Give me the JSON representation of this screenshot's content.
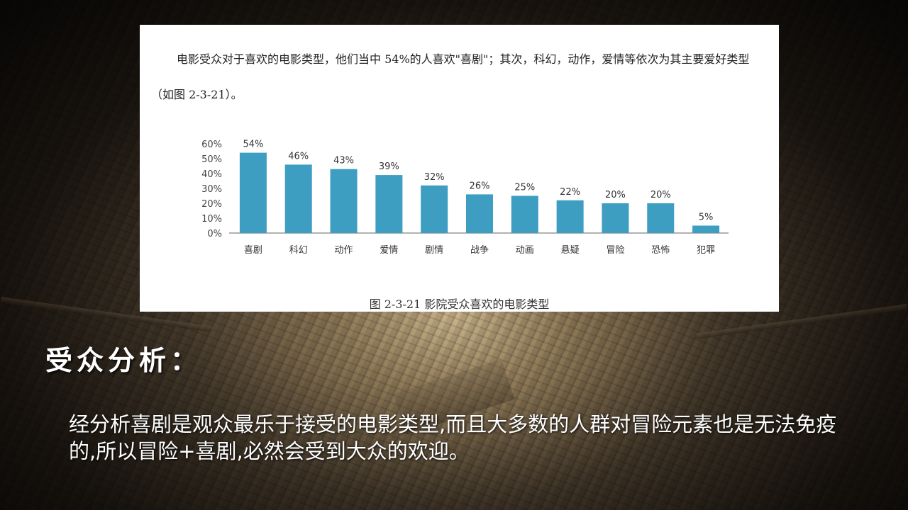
{
  "intro_text": "电影受众对于喜欢的电影类型，他们当中 54%的人喜欢\"喜剧\"；其次，科幻，动作，爱情等依次为其主要爱好类型（如图 2-3-21）。",
  "caption": "图 2-3-21 影院受众喜欢的电影类型",
  "section_title": "受众分析：",
  "body_text": "经分析喜剧是观众最乐于接受的电影类型,而且大多数的人群对冒险元素也是无法免疫的,所以冒险+喜剧,必然会受到大众的欢迎。",
  "colors": {
    "bar": "#3d9ec2",
    "axis": "#999999"
  },
  "chart_data": {
    "type": "bar",
    "categories": [
      "喜剧",
      "科幻",
      "动作",
      "爱情",
      "剧情",
      "战争",
      "动画",
      "悬疑",
      "冒险",
      "恐怖",
      "犯罪"
    ],
    "values": [
      54,
      46,
      43,
      39,
      32,
      26,
      25,
      22,
      20,
      20,
      5
    ],
    "data_labels": [
      "54%",
      "46%",
      "43%",
      "39%",
      "32%",
      "26%",
      "25%",
      "22%",
      "20%",
      "20%",
      "5%"
    ],
    "yticks": [
      "0%",
      "10%",
      "20%",
      "30%",
      "40%",
      "50%",
      "60%"
    ],
    "ylim": [
      0,
      60
    ],
    "grid": false,
    "title": "",
    "xlabel": "",
    "ylabel": ""
  }
}
